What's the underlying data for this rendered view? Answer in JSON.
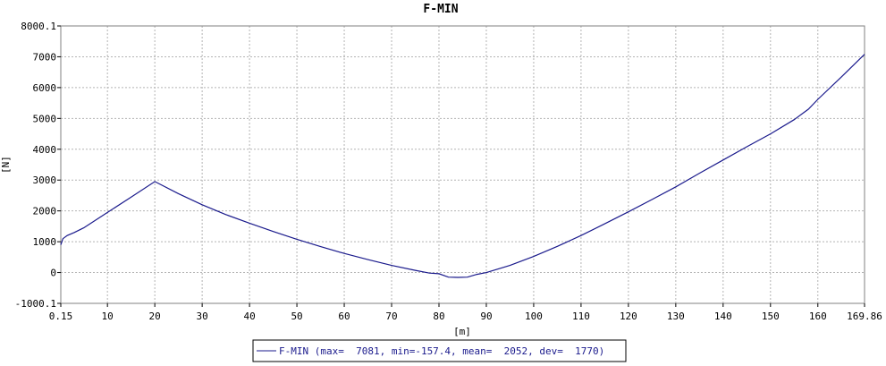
{
  "chart_data": {
    "type": "line",
    "title": "F-MIN",
    "xlabel": "[m]",
    "ylabel": "[N]",
    "xlim": [
      0.15,
      169.86
    ],
    "ylim": [
      -1000.1,
      8000.1
    ],
    "x_tick_labels": [
      "0.15",
      "10",
      "20",
      "30",
      "40",
      "50",
      "60",
      "70",
      "80",
      "90",
      "100",
      "110",
      "120",
      "130",
      "140",
      "150",
      "160",
      "169.86"
    ],
    "x_tick_values": [
      0.15,
      10,
      20,
      30,
      40,
      50,
      60,
      70,
      80,
      90,
      100,
      110,
      120,
      130,
      140,
      150,
      160,
      169.86
    ],
    "y_tick_labels": [
      "-1000.1",
      "0",
      "1000",
      "2000",
      "3000",
      "4000",
      "5000",
      "6000",
      "7000",
      "8000.1"
    ],
    "y_tick_values": [
      -1000.1,
      0,
      1000,
      2000,
      3000,
      4000,
      5000,
      6000,
      7000,
      8000.1
    ],
    "grid": true,
    "legend_position": "bottom-center",
    "series": [
      {
        "name": "F-MIN",
        "color": "#1a1a8c",
        "x": [
          0.15,
          0.6,
          1.5,
          3,
          5,
          10,
          15,
          20,
          25,
          30,
          35,
          40,
          45,
          50,
          55,
          60,
          65,
          70,
          75,
          78,
          80,
          82,
          84,
          86,
          88,
          90,
          95,
          100,
          105,
          110,
          115,
          120,
          125,
          130,
          135,
          140,
          145,
          150,
          155,
          158,
          160,
          165,
          169.86
        ],
        "y": [
          900,
          1100,
          1200,
          1300,
          1450,
          1950,
          2450,
          2950,
          2560,
          2200,
          1880,
          1600,
          1330,
          1080,
          840,
          620,
          420,
          230,
          70,
          -20,
          -40,
          -150,
          -157.4,
          -150,
          -60,
          0,
          230,
          520,
          850,
          1200,
          1580,
          1970,
          2370,
          2780,
          3220,
          3650,
          4080,
          4500,
          4960,
          5300,
          5620,
          6350,
          7081
        ]
      }
    ],
    "legend_text": "F-MIN (max=  7081, min=-157.4, mean=  2052, dev=  1770)"
  }
}
